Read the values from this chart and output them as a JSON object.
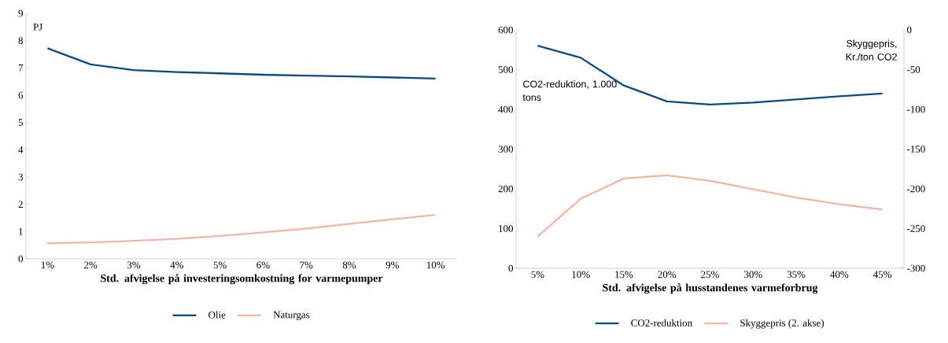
{
  "chart_data": [
    {
      "type": "line",
      "ylabel": "PJ",
      "xlabel": "Std. afvigelse på investeringsomkostning for varmepumper",
      "categories": [
        "1%",
        "2%",
        "3%",
        "4%",
        "5%",
        "6%",
        "7%",
        "8%",
        "9%",
        "10%"
      ],
      "series": [
        {
          "name": "Olie",
          "color": "#0b4a87",
          "values": [
            7.72,
            7.13,
            6.92,
            6.85,
            6.8,
            6.75,
            6.72,
            6.69,
            6.65,
            6.61
          ]
        },
        {
          "name": "Naturgas",
          "color": "#f4b6a6",
          "values": [
            0.57,
            0.6,
            0.66,
            0.73,
            0.84,
            0.97,
            1.11,
            1.28,
            1.45,
            1.61
          ]
        }
      ],
      "ylim": [
        0,
        9
      ],
      "yticks": [
        0,
        1,
        2,
        3,
        4,
        5,
        6,
        7,
        8,
        9
      ],
      "grid": false,
      "legend": "bottom",
      "marker": "none",
      "line_style": "solid"
    },
    {
      "type": "line",
      "ylabel": "CO2-reduktion, 1.000 tons",
      "y2label": "Skyggepris, Kr./ton CO2",
      "xlabel": "Std. afvigelse på husstandenes varmeforbrug",
      "categories": [
        "5%",
        "10%",
        "15%",
        "20%",
        "25%",
        "30%",
        "35%",
        "40%",
        "45%"
      ],
      "series": [
        {
          "name": "CO2-reduktion",
          "color": "#0b4a87",
          "values": [
            560,
            530,
            460,
            420,
            412,
            417,
            425,
            433,
            440
          ]
        },
        {
          "name": "Skyggepris (2. akse)",
          "color": "#f4b6a6",
          "axis": "y2",
          "values": [
            -260,
            -212.5,
            -187,
            -183,
            -190,
            -200.5,
            -211,
            -219.5,
            -226
          ]
        }
      ],
      "ylim": [
        0,
        600
      ],
      "yticks": [
        0,
        100,
        200,
        300,
        400,
        500,
        600
      ],
      "y2lim": [
        -300,
        0
      ],
      "y2ticks": [
        -300,
        -250,
        -200,
        -150,
        -100,
        -50,
        0
      ],
      "grid": false,
      "legend": "bottom",
      "marker": "none",
      "line_style": "solid"
    }
  ]
}
